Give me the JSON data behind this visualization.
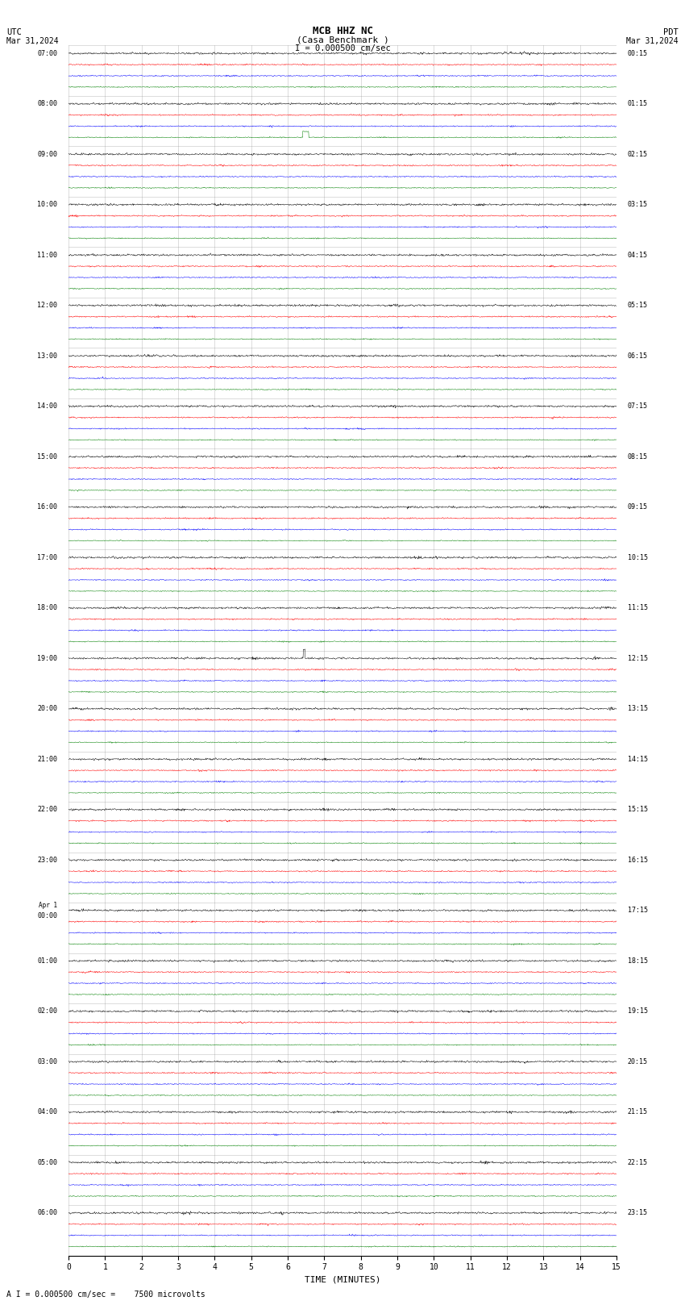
{
  "title_line1": "MCB HHZ NC",
  "title_line2": "(Casa Benchmark )",
  "title_line3": "I = 0.000500 cm/sec",
  "left_label": "UTC",
  "left_date": "Mar 31,2024",
  "right_label": "PDT",
  "right_date": "Mar 31,2024",
  "xlabel": "TIME (MINUTES)",
  "footer": "A I = 0.000500 cm/sec =    7500 microvolts",
  "colors": [
    "black",
    "red",
    "blue",
    "green"
  ],
  "x_min": 0,
  "x_max": 15,
  "x_ticks": [
    0,
    1,
    2,
    3,
    4,
    5,
    6,
    7,
    8,
    9,
    10,
    11,
    12,
    13,
    14,
    15
  ],
  "num_rows": 24,
  "traces_per_row": 4,
  "noise_std": [
    0.012,
    0.008,
    0.007,
    0.006
  ],
  "background_color": "white",
  "grid_color": "#888888",
  "utc_labels": [
    "07:00",
    "08:00",
    "09:00",
    "10:00",
    "11:00",
    "12:00",
    "13:00",
    "14:00",
    "15:00",
    "16:00",
    "17:00",
    "18:00",
    "19:00",
    "20:00",
    "21:00",
    "22:00",
    "23:00",
    "Apr 1\n00:00",
    "01:00",
    "02:00",
    "03:00",
    "04:00",
    "05:00",
    "06:00"
  ],
  "pdt_labels": [
    "00:15",
    "01:15",
    "02:15",
    "03:15",
    "04:15",
    "05:15",
    "06:15",
    "07:15",
    "08:15",
    "09:15",
    "10:15",
    "11:15",
    "12:15",
    "13:15",
    "14:15",
    "15:15",
    "16:15",
    "17:15",
    "18:15",
    "19:15",
    "20:15",
    "21:15",
    "22:15",
    "23:15"
  ]
}
